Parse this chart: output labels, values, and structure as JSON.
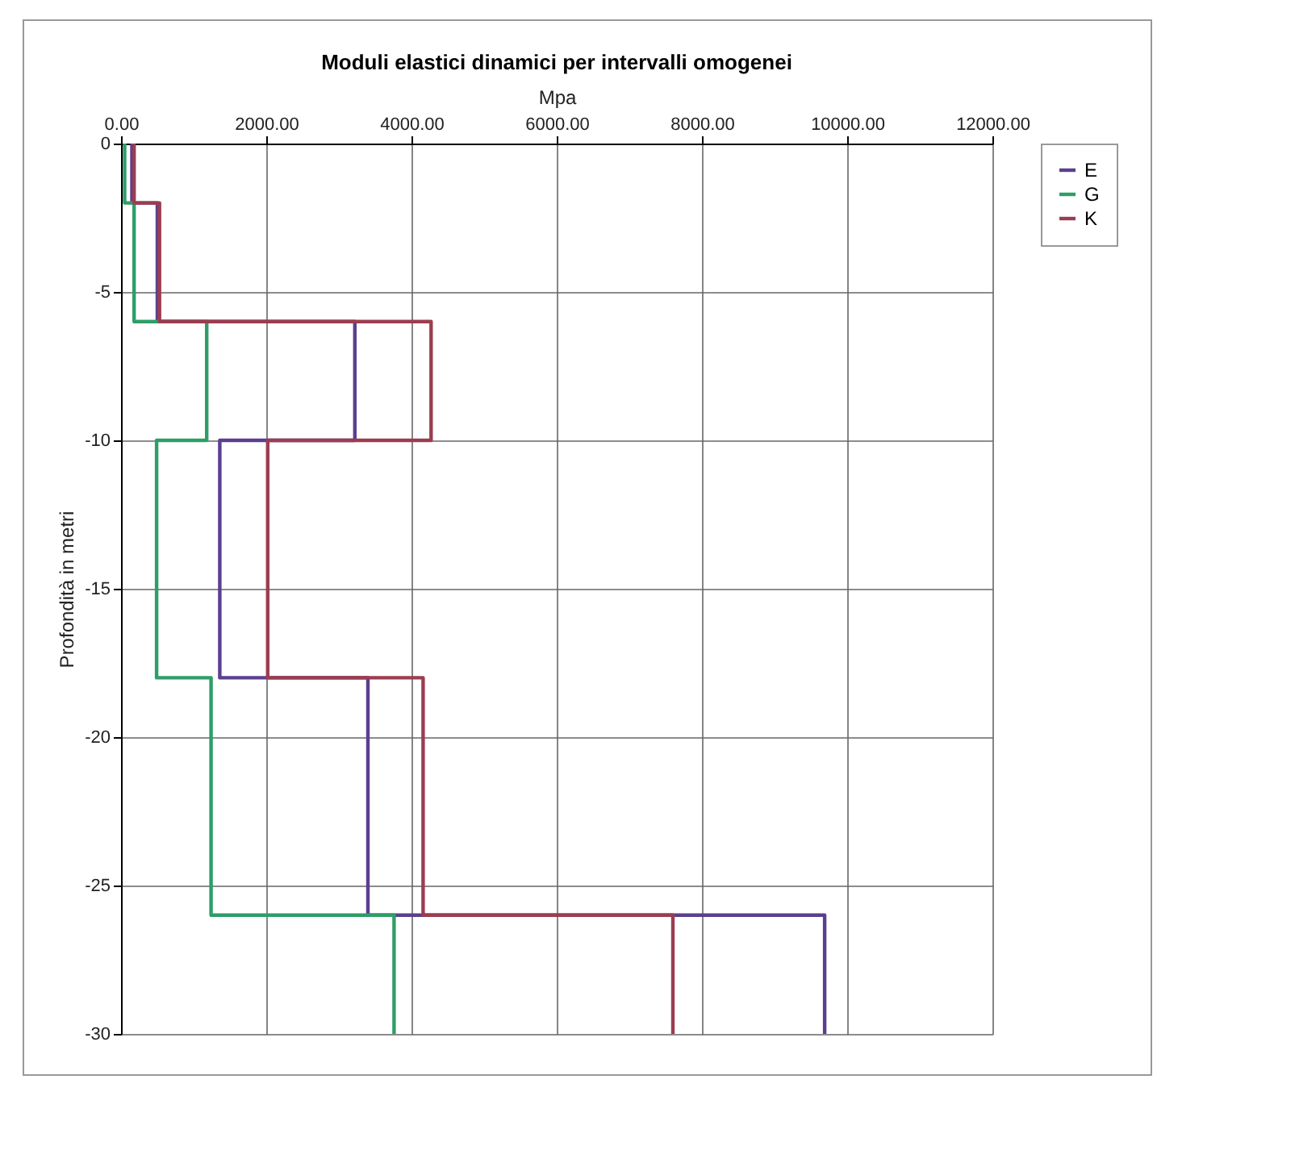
{
  "chart_data": {
    "type": "line",
    "title": "Moduli elastici dinamici per intervalli omogenei",
    "xlabel": "Mpa",
    "ylabel": "Profondità in metri",
    "xlim": [
      0,
      12000
    ],
    "xticks": [
      {
        "value": 0,
        "label": "0.00"
      },
      {
        "value": 2000,
        "label": "2000.00"
      },
      {
        "value": 4000,
        "label": "4000.00"
      },
      {
        "value": 6000,
        "label": "6000.00"
      },
      {
        "value": 8000,
        "label": "8000.00"
      },
      {
        "value": 10000,
        "label": "10000.00"
      },
      {
        "value": 12000,
        "label": "12000.00"
      }
    ],
    "ylim": [
      -30,
      0
    ],
    "yticks": [
      -30,
      -25,
      -20,
      -15,
      -10,
      -5,
      0
    ],
    "grid": true,
    "legend": "right",
    "marker": "none",
    "line_style": "solid",
    "series": [
      {
        "name": "E",
        "color": "#5b3f8f",
        "x": [
          150,
          150,
          500,
          500,
          3220,
          3220,
          1360,
          1360,
          3400,
          3400,
          9690,
          9690
        ],
        "values": [
          0,
          -2,
          -2,
          -6,
          -6,
          -10,
          -10,
          -18,
          -18,
          -26,
          -26,
          -30
        ]
      },
      {
        "name": "G",
        "color": "#2e9e68",
        "x": [
          50,
          50,
          180,
          180,
          1180,
          1180,
          490,
          490,
          1240,
          1240,
          3760,
          3760
        ],
        "values": [
          0,
          -2,
          -2,
          -6,
          -6,
          -10,
          -10,
          -18,
          -18,
          -26,
          -26,
          -30
        ]
      },
      {
        "name": "K",
        "color": "#9b3d50",
        "x": [
          180,
          180,
          530,
          530,
          4270,
          4270,
          2020,
          2020,
          4160,
          4160,
          7600,
          7600
        ],
        "values": [
          0,
          -2,
          -2,
          -6,
          -6,
          -10,
          -10,
          -18,
          -18,
          -26,
          -26,
          -30
        ]
      }
    ]
  }
}
